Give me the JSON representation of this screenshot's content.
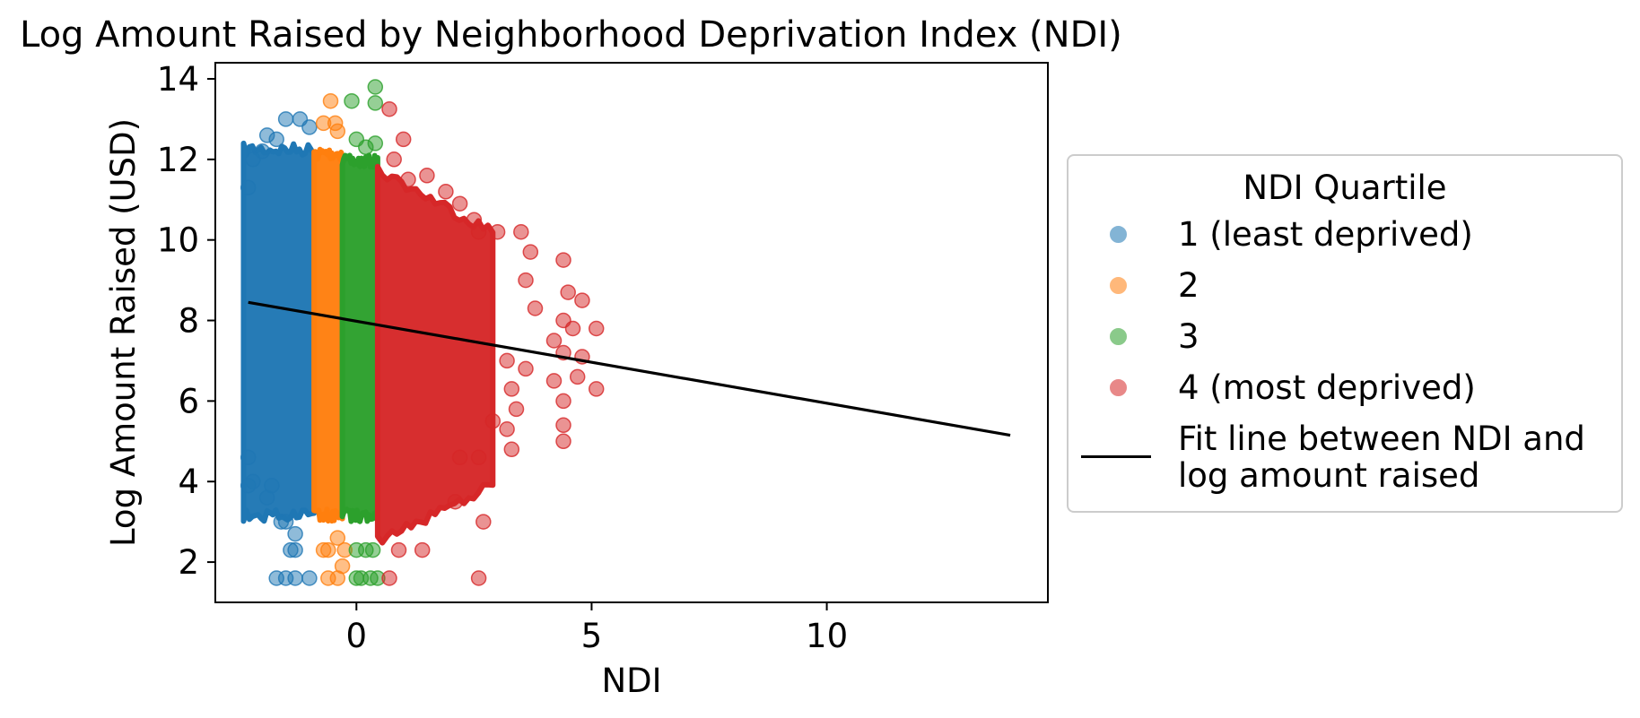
{
  "chart_data": {
    "type": "scatter",
    "title": "Log Amount Raised by Neighborhood Deprivation Index (NDI)",
    "xlabel": "NDI",
    "ylabel": "Log Amount Raised (USD)",
    "xlim": [
      -3.0,
      14.7
    ],
    "ylim": [
      1.0,
      14.4
    ],
    "xticks": [
      0,
      5,
      10
    ],
    "yticks": [
      2,
      4,
      6,
      8,
      10,
      12,
      14
    ],
    "grid": false,
    "legend": {
      "title": "NDI Quartile",
      "placement": "outside-right",
      "entries": [
        {
          "label": "1 (least deprived)",
          "kind": "marker",
          "color": "#1f77b4"
        },
        {
          "label": "2",
          "kind": "marker",
          "color": "#ff7f0e"
        },
        {
          "label": "3",
          "kind": "marker",
          "color": "#2ca02c"
        },
        {
          "label": "4 (most deprived)",
          "kind": "marker",
          "color": "#d62728"
        },
        {
          "label": "Fit line between NDI and\nlog amount raised",
          "kind": "line",
          "color": "#000000"
        }
      ]
    },
    "series": [
      {
        "name": "1 (least deprived)",
        "color": "#1f77b4",
        "band": {
          "x": [
            -2.4,
            -0.9
          ],
          "y": [
            3.0,
            12.4
          ],
          "density": "high"
        },
        "points": [
          [
            -1.5,
            13.0
          ],
          [
            -1.2,
            13.0
          ],
          [
            -1.0,
            12.8
          ],
          [
            -1.9,
            12.6
          ],
          [
            -1.7,
            12.5
          ],
          [
            -2.0,
            12.2
          ],
          [
            -2.2,
            12.0
          ],
          [
            -2.3,
            11.3
          ],
          [
            -2.3,
            4.6
          ],
          [
            -2.2,
            4.0
          ],
          [
            -2.3,
            3.9
          ],
          [
            -1.9,
            3.6
          ],
          [
            -1.8,
            3.9
          ],
          [
            -1.6,
            3.0
          ],
          [
            -1.5,
            3.0
          ],
          [
            -1.3,
            2.7
          ],
          [
            -1.4,
            2.3
          ],
          [
            -1.3,
            2.3
          ],
          [
            -1.7,
            1.6
          ],
          [
            -1.5,
            1.6
          ],
          [
            -1.3,
            1.6
          ],
          [
            -1.0,
            1.6
          ]
        ]
      },
      {
        "name": "2",
        "color": "#ff7f0e",
        "band": {
          "x": [
            -0.9,
            -0.3
          ],
          "y": [
            3.0,
            12.3
          ],
          "density": "high"
        },
        "points": [
          [
            -0.55,
            13.45
          ],
          [
            -0.7,
            12.9
          ],
          [
            -0.45,
            12.9
          ],
          [
            -0.4,
            12.7
          ],
          [
            -0.7,
            2.3
          ],
          [
            -0.6,
            2.3
          ],
          [
            -0.4,
            2.6
          ],
          [
            -0.25,
            2.3
          ],
          [
            -0.6,
            1.6
          ],
          [
            -0.4,
            1.6
          ],
          [
            -0.3,
            1.9
          ]
        ]
      },
      {
        "name": "3",
        "color": "#2ca02c",
        "band": {
          "x": [
            -0.3,
            0.45
          ],
          "y": [
            3.0,
            12.1
          ],
          "density": "high"
        },
        "points": [
          [
            0.4,
            13.8
          ],
          [
            0.4,
            13.4
          ],
          [
            -0.1,
            13.45
          ],
          [
            0.0,
            12.5
          ],
          [
            0.2,
            12.3
          ],
          [
            0.4,
            12.4
          ],
          [
            0.0,
            2.3
          ],
          [
            0.2,
            2.3
          ],
          [
            0.35,
            2.3
          ],
          [
            0.0,
            1.6
          ],
          [
            0.1,
            1.6
          ],
          [
            0.3,
            1.6
          ],
          [
            0.45,
            1.6
          ]
        ]
      },
      {
        "name": "4 (most deprived)",
        "color": "#d62728",
        "band": {
          "x": [
            0.45,
            2.9
          ],
          "y": [
            2.4,
            11.9
          ],
          "density": "high"
        },
        "points": [
          [
            0.7,
            13.25
          ],
          [
            1.0,
            12.5
          ],
          [
            0.8,
            12.0
          ],
          [
            1.1,
            11.5
          ],
          [
            1.5,
            11.6
          ],
          [
            1.9,
            11.2
          ],
          [
            2.2,
            10.9
          ],
          [
            2.5,
            10.5
          ],
          [
            2.6,
            10.2
          ],
          [
            3.0,
            10.2
          ],
          [
            3.5,
            10.2
          ],
          [
            3.7,
            9.7
          ],
          [
            4.4,
            9.5
          ],
          [
            3.6,
            9.0
          ],
          [
            4.5,
            8.7
          ],
          [
            4.8,
            8.5
          ],
          [
            3.8,
            8.3
          ],
          [
            4.4,
            8.0
          ],
          [
            4.6,
            7.8
          ],
          [
            5.1,
            7.8
          ],
          [
            4.2,
            7.5
          ],
          [
            4.4,
            7.2
          ],
          [
            4.8,
            7.1
          ],
          [
            3.2,
            7.0
          ],
          [
            3.6,
            6.8
          ],
          [
            4.2,
            6.5
          ],
          [
            4.7,
            6.6
          ],
          [
            5.1,
            6.3
          ],
          [
            3.3,
            6.3
          ],
          [
            4.4,
            6.0
          ],
          [
            3.4,
            5.8
          ],
          [
            4.4,
            5.4
          ],
          [
            3.2,
            5.3
          ],
          [
            4.4,
            5.0
          ],
          [
            3.3,
            4.8
          ],
          [
            2.9,
            5.5
          ],
          [
            2.2,
            4.6
          ],
          [
            2.6,
            4.6
          ],
          [
            2.1,
            3.5
          ],
          [
            2.7,
            3.0
          ],
          [
            0.9,
            2.3
          ],
          [
            1.4,
            2.3
          ],
          [
            2.6,
            1.6
          ],
          [
            0.7,
            1.6
          ]
        ]
      }
    ],
    "fit_line": {
      "name": "Fit line between NDI and\nlog amount raised",
      "color": "#000000",
      "x": [
        -2.3,
        13.9
      ],
      "y": [
        8.45,
        5.15
      ]
    }
  }
}
